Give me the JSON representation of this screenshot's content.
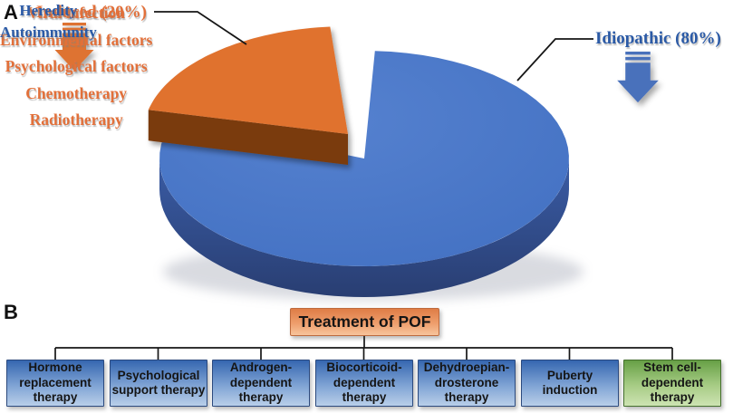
{
  "colors": {
    "orange": "#E0722F",
    "orange_dark_side": "#7A3B10",
    "orange_text": "#E2703A",
    "blue": "#4472C4",
    "blue_dark_side": "#2E4A86",
    "blue_text": "#2B5AA6",
    "title_box_top": "#DF7D46",
    "title_box_bottom": "#F7C49C",
    "blue_box_top": "#3667B0",
    "blue_box_bottom": "#B9CFE9",
    "green_box_top": "#67A046",
    "green_box_bottom": "#CDE3B2",
    "line_black": "#161616"
  },
  "panel_a": {
    "label": "A",
    "induced": {
      "title": "Induced (20%)",
      "causes": [
        "Viral infection",
        "Environmental factors",
        "Psychological factors",
        "Chemotherapy",
        "Radiotherapy"
      ]
    },
    "idiopathic": {
      "title": "Idiopathic (80%)",
      "causes": [
        "Heredity",
        "Autoimmunity"
      ]
    }
  },
  "chart_data": {
    "type": "pie",
    "style": "3d exploded pie, no legend, leader lines to labels",
    "slices": [
      {
        "label": "Idiopathic",
        "value_pct": 80,
        "color": "#4472C4",
        "related_causes": [
          "Heredity",
          "Autoimmunity"
        ]
      },
      {
        "label": "Induced",
        "value_pct": 20,
        "color": "#E0722F",
        "related_causes": [
          "Viral infection",
          "Environmental factors",
          "Psychological factors",
          "Chemotherapy",
          "Radiotherapy"
        ]
      }
    ]
  },
  "panel_b": {
    "label": "B",
    "title": "Treatment of POF",
    "treatments": [
      {
        "label": "Hormone\nreplacement\ntherapy",
        "color": "blue"
      },
      {
        "label": "Psychological\nsupport therapy",
        "color": "blue"
      },
      {
        "label": "Androgen-\ndependent\ntherapy",
        "color": "blue"
      },
      {
        "label": "Biocorticoid-\ndependent\ntherapy",
        "color": "blue"
      },
      {
        "label": "Dehydroepian-\ndrosterone\ntherapy",
        "color": "blue"
      },
      {
        "label": "Puberty\ninduction",
        "color": "blue"
      },
      {
        "label": "Stem cell-\ndependent\ntherapy",
        "color": "green"
      }
    ]
  }
}
